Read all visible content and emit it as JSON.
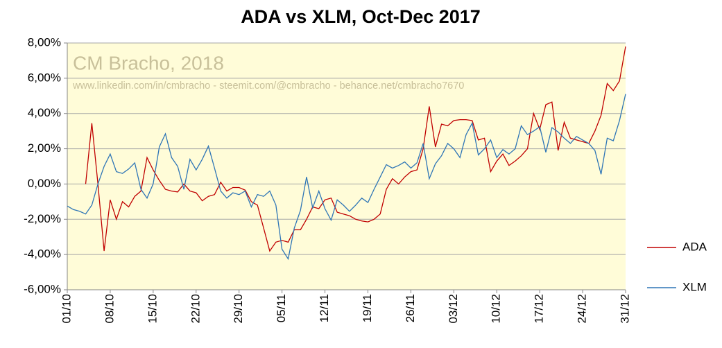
{
  "chart_data": {
    "type": "line",
    "title": "ADA vs XLM, Oct-Dec 2017",
    "annotations": [
      "CM Bracho, 2018",
      "www.linkedin.com/in/cmbracho  -  steemit.com/@cmbracho  -  behance.net/cmbracho7670"
    ],
    "categories": [
      "01/10",
      null,
      null,
      null,
      null,
      null,
      null,
      "08/10",
      null,
      null,
      null,
      null,
      null,
      null,
      "15/10",
      null,
      null,
      null,
      null,
      null,
      null,
      "22/10",
      null,
      null,
      null,
      null,
      null,
      null,
      "29/10",
      null,
      null,
      null,
      null,
      null,
      null,
      "05/11",
      null,
      null,
      null,
      null,
      null,
      null,
      "12/11",
      null,
      null,
      null,
      null,
      null,
      null,
      "19/11",
      null,
      null,
      null,
      null,
      null,
      null,
      "26/11",
      null,
      null,
      null,
      null,
      null,
      null,
      "03/12",
      null,
      null,
      null,
      null,
      null,
      null,
      "10/12",
      null,
      null,
      null,
      null,
      null,
      null,
      "17/12",
      null,
      null,
      null,
      null,
      null,
      null,
      "24/12",
      null,
      null,
      null,
      null,
      null,
      null,
      "31/12"
    ],
    "series": [
      {
        "name": "ADA",
        "color": "#c00000",
        "values": [
          null,
          null,
          null,
          0.0,
          3.45,
          0.0,
          -3.8,
          -0.9,
          -2.0,
          -1.0,
          -1.3,
          -0.7,
          -0.4,
          1.5,
          0.8,
          0.2,
          -0.3,
          -0.4,
          -0.45,
          0.0,
          -0.4,
          -0.5,
          -0.95,
          -0.7,
          -0.6,
          0.1,
          -0.4,
          -0.2,
          -0.2,
          -0.35,
          -1.0,
          -1.2,
          -2.5,
          -3.8,
          -3.3,
          -3.2,
          -3.3,
          -2.6,
          -2.6,
          -2.0,
          -1.3,
          -1.4,
          -0.9,
          -0.8,
          -1.6,
          -1.7,
          -1.8,
          -2.0,
          -2.1,
          -2.15,
          -2.0,
          -1.7,
          -0.3,
          0.3,
          0.0,
          0.4,
          0.7,
          0.8,
          2.0,
          4.4,
          2.1,
          3.4,
          3.3,
          3.6,
          3.65,
          3.65,
          3.6,
          2.5,
          2.6,
          0.7,
          1.3,
          1.7,
          1.05,
          1.3,
          1.6,
          2.0,
          4.0,
          3.1,
          4.5,
          4.65,
          1.9,
          3.5,
          2.6,
          2.5,
          2.4,
          2.3,
          3.0,
          3.9,
          5.7,
          5.3,
          5.85,
          7.8
        ]
      },
      {
        "name": "XLM",
        "color": "#2e75b6",
        "values": [
          -1.25,
          -1.45,
          -1.55,
          -1.7,
          -1.2,
          0.0,
          1.0,
          1.7,
          0.7,
          0.6,
          0.85,
          1.2,
          -0.3,
          -0.8,
          0.0,
          2.1,
          2.85,
          1.5,
          1.0,
          -0.3,
          1.4,
          0.8,
          1.4,
          2.15,
          0.9,
          -0.4,
          -0.8,
          -0.5,
          -0.6,
          -0.4,
          -1.3,
          -0.6,
          -0.7,
          -0.4,
          -1.2,
          -3.7,
          -4.25,
          -2.5,
          -1.5,
          0.4,
          -1.35,
          -0.4,
          -1.4,
          -2.05,
          -0.9,
          -1.2,
          -1.55,
          -1.2,
          -0.8,
          -1.05,
          -0.3,
          0.4,
          1.1,
          0.9,
          1.05,
          1.25,
          0.9,
          1.2,
          2.3,
          0.3,
          1.15,
          1.6,
          2.3,
          2.0,
          1.5,
          2.8,
          3.45,
          1.65,
          2.0,
          2.5,
          1.5,
          1.95,
          1.7,
          2.0,
          3.3,
          2.8,
          3.0,
          3.25,
          1.8,
          3.2,
          2.95,
          2.6,
          2.3,
          2.7,
          2.5,
          2.3,
          1.9,
          0.55,
          2.6,
          2.45,
          3.6,
          5.1
        ]
      }
    ],
    "ylim": [
      -6,
      8
    ],
    "yticks": [
      {
        "value": -6,
        "label": "-6,00%"
      },
      {
        "value": -4,
        "label": "-4,00%"
      },
      {
        "value": -2,
        "label": "-2,00%"
      },
      {
        "value": 0,
        "label": "0,00%"
      },
      {
        "value": 2,
        "label": "2,00%"
      },
      {
        "value": 4,
        "label": "4,00%"
      },
      {
        "value": 6,
        "label": "6,00%"
      },
      {
        "value": 8,
        "label": "8,00%"
      }
    ],
    "grid": true,
    "legend": "right",
    "background": "#fffcd8"
  }
}
